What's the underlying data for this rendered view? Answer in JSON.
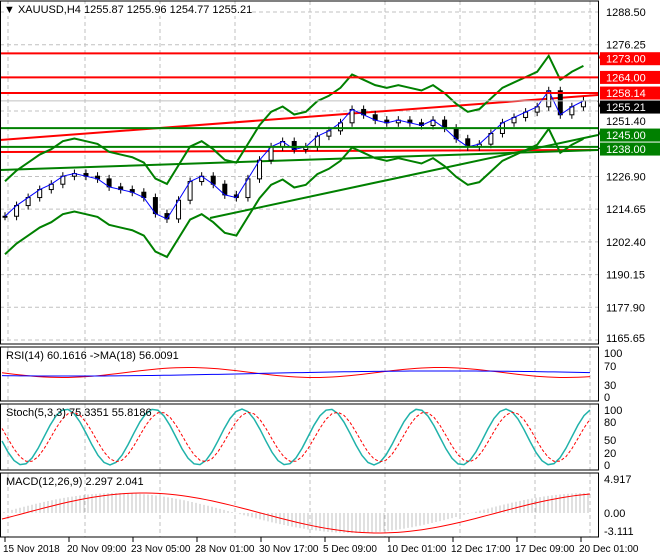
{
  "header": {
    "symbol_line": "XAUUSD,H4  1255.87 1255.96 1254.77 1255.21",
    "menu_icon": "triangle-down-icon"
  },
  "price_axis": {
    "ticks": [
      "1288.50",
      "1276.25",
      "1251.40",
      "1226.90",
      "1214.65",
      "1202.40",
      "1190.15",
      "1177.90",
      "1165.65"
    ]
  },
  "levels": [
    {
      "label": "1273.00",
      "value": 1273.0,
      "color": "#ff0000"
    },
    {
      "label": "1264.00",
      "value": 1264.0,
      "color": "#ff0000"
    },
    {
      "label": "1258.14",
      "value": 1258.14,
      "color": "#ff0000"
    },
    {
      "label": "1245.00",
      "value": 1245.0,
      "color": "#008000"
    },
    {
      "label": "1238.00",
      "value": 1238.0,
      "color": "#008000"
    }
  ],
  "current_price": {
    "label": "1255.21",
    "value": 1255.21
  },
  "rsi": {
    "label": "RSI(14) 60.1616  ->MA(18) 56.0091",
    "ticks": [
      "100",
      "70",
      "30",
      "0"
    ]
  },
  "stoch": {
    "label": "Stoch(5,3,3) 75.3351 55.8186",
    "ticks": [
      "100",
      "80",
      "50",
      "20",
      "0"
    ]
  },
  "macd": {
    "label": "MACD(12,26,9) 2.297 2.041",
    "ticks": [
      "4.917",
      "0.00",
      "-3.111"
    ]
  },
  "time_axis": {
    "ticks": [
      "15 Nov 2018",
      "20 Nov 09:00",
      "23 Nov 05:00",
      "28 Nov 01:00",
      "30 Nov 17:00",
      "5 Dec 09:00",
      "10 Dec 01:00",
      "12 Dec 17:00",
      "17 Dec 09:00",
      "20 Dec 01:00"
    ]
  },
  "chart_data": {
    "type": "candlestick",
    "ylim": [
      1165.65,
      1288.5
    ],
    "closes": [
      1212,
      1216,
      1219,
      1222,
      1224,
      1227,
      1228,
      1227,
      1226,
      1223,
      1222,
      1221,
      1219,
      1213,
      1211,
      1218,
      1225,
      1227,
      1224,
      1220,
      1219,
      1226,
      1233,
      1238,
      1240,
      1237,
      1238,
      1242,
      1244,
      1247,
      1252,
      1250,
      1248,
      1247,
      1248,
      1247,
      1246,
      1248,
      1245,
      1241,
      1238,
      1239,
      1243,
      1247,
      1249,
      1251,
      1253,
      1259,
      1250,
      1253,
      1255.21
    ]
  }
}
